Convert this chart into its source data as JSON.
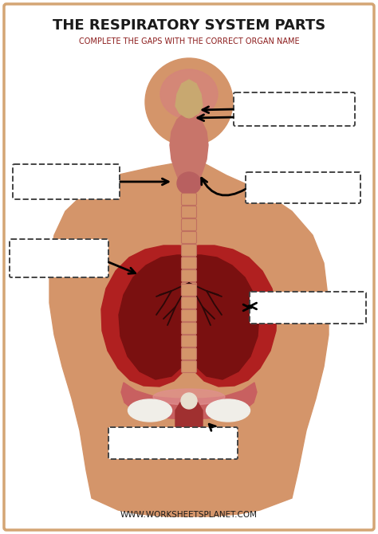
{
  "title": "THE RESPIRATORY SYSTEM PARTS",
  "subtitle": "COMPLETE THE GAPS WITH THE CORRECT ORGAN NAME",
  "watermark": "WWW.WORKSHEETSPLANET.COM",
  "bg_color": "#FFFFFF",
  "border_color": "#D4A574",
  "title_color": "#1a1a1a",
  "subtitle_color": "#8B1A1A",
  "skin_color": "#D4956A",
  "nasal_cavity_color": "#D4857A",
  "throat_color": "#C8756A",
  "trachea_color": "#D4956A",
  "trachea_border": "#C07060",
  "lung_outer": "#B02020",
  "lung_inner": "#7A1010",
  "lung_highlight": "#C03535",
  "diaphragm_color": "#C86060",
  "diaphragm_pink": "#E09090",
  "white_tissue": "#F0EEE8"
}
